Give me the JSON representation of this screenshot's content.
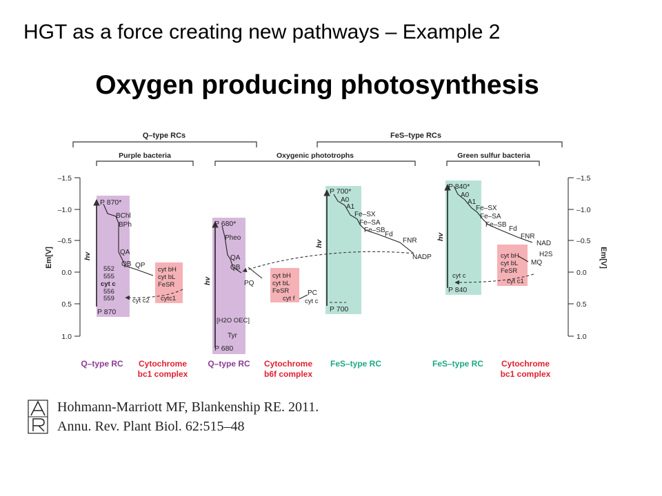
{
  "slide": {
    "title": "HGT as a force creating new pathways – Example 2",
    "subtitle": "Oxygen producing photosynthesis"
  },
  "diagram": {
    "brackets": {
      "qtype": "Q–type RCs",
      "festype": "FeS–type RCs",
      "purple": "Purple bacteria",
      "oxygenic": "Oxygenic phototrophs",
      "greensulfur": "Green sulfur bacteria"
    },
    "axis": {
      "ticks": [
        "–1.5",
        "–1.0",
        "–0.5",
        "0.0",
        "0.5",
        "1.0"
      ],
      "label_left": "Em[V]",
      "label_right": "Em[V]"
    },
    "colors": {
      "purple_box": "#d7b8dd",
      "red_box": "#f5b1b5",
      "teal_box": "#b9e2d6",
      "purple_text": "#8b3b93",
      "red_text": "#e02030",
      "teal_text": "#1aa886",
      "arrow_line": "#333333"
    },
    "labels": {
      "p870_star": "P 870*",
      "bchl": "BChl",
      "bph": "BPh",
      "qa1": "QA",
      "qb1": "QB",
      "qp": "QP",
      "n552": "552",
      "n555": "555",
      "cytc_bold": "cyt c",
      "n556": "556",
      "n559": "559",
      "p870": "P 870",
      "hv1": "hv",
      "cytbh1": "cyt bH",
      "cytbl1": "cyt bL",
      "fesr1": "FeSR",
      "cytc1_1": "cytc1",
      "cytc2": "cyt c2",
      "p680_star": "P 680*",
      "pheo": "Pheo",
      "qa2": "QA",
      "qb2": "QB",
      "pq": "PQ",
      "h2o_oec": "[H2O OEC]",
      "tyr": "Tyr",
      "p680": "P 680",
      "hv2": "hv",
      "cytbh2": "cyt bH",
      "cytbl2": "cyt bL",
      "fesr2": "FeSR",
      "cytf": "cyt f",
      "pc": "PC",
      "cytc_b": "cyt c",
      "p700_star": "P 700*",
      "a0_1": "A0",
      "a1_1": "A1",
      "fesx1": "Fe–SX",
      "fesa1": "Fe–SA",
      "fesb1": "Fe–SB",
      "fd1": "Fd",
      "fnr1": "FNR",
      "nadp": "NADP",
      "p700": "P 700",
      "hv3": "hv",
      "p840_star": "P 840*",
      "a0_2": "A0",
      "a1_2": "A1",
      "fesx2": "Fe–SX",
      "fesa2": "Fe–SA",
      "fesb2": "Fe–SB",
      "fd2": "Fd",
      "fnr2": "FNR",
      "nad": "NAD",
      "cytc_g": "cyt c",
      "p840": "P 840",
      "hv4": "hv",
      "h2s": "H2S",
      "mq": "MQ",
      "cytbh3": "cyt bH",
      "cytbl3": "cyt bL",
      "fesr3": "FeSR",
      "cytc1_3": "cyt c1"
    },
    "captions": {
      "c1": "Q–type RC",
      "c2a": "Cytochrome",
      "c2b": "bc1 complex",
      "c3": "Q–type RC",
      "c4a": "Cytochrome",
      "c4b": "b6f complex",
      "c5": "FeS–type RC",
      "c6": "FeS–type RC",
      "c7a": "Cytochrome",
      "c7b": "bc1 complex"
    }
  },
  "citation": {
    "line1": "Hohmann-Marriott MF, Blankenship RE. 2011.",
    "line2": "Annu. Rev. Plant Biol. 62:515–48",
    "logo_letters": "AR"
  }
}
